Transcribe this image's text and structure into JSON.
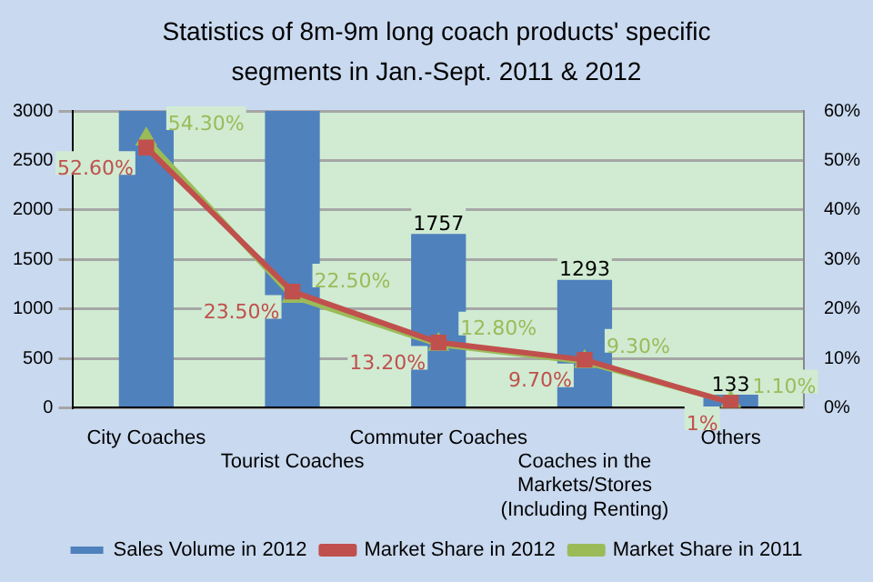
{
  "chart_data": {
    "type": "bar",
    "title": "Statistics of 8m-9m long coach products' specific segments in Jan.-Sept. 2011 & 2012",
    "categories": [
      "City Coaches",
      "Tourist Coaches",
      "Commuter Coaches",
      "Coaches in the Markets/Stores (Including Renting)",
      "Others"
    ],
    "series": [
      {
        "name": "Sales Volume in 2012",
        "color": "#4f81bd",
        "values": [
          3000,
          3000,
          1757,
          1293,
          133
        ],
        "value_labels": [
          null,
          null,
          "1757",
          "1293",
          "133"
        ]
      },
      {
        "name": "Market Share in 2012",
        "type": "line",
        "axis": "y2",
        "marker": "square",
        "color": "#c0504d",
        "values": [
          52.6,
          23.5,
          13.2,
          9.7,
          1
        ],
        "value_labels": [
          "52.60%",
          "23.50%",
          "13.20%",
          "9.70%",
          "1%"
        ]
      },
      {
        "name": "Market Share in 2011",
        "type": "line",
        "axis": "y2",
        "marker": "triangle",
        "color": "#9bbb59",
        "values": [
          54.3,
          22.5,
          12.8,
          9.3,
          1.1
        ],
        "value_labels": [
          "54.30%",
          "22.50%",
          "12.80%",
          "9.30%",
          "1.10%"
        ]
      }
    ],
    "ylim": [
      0,
      3000
    ],
    "yticks": [
      0,
      500,
      1000,
      1500,
      2000,
      2500,
      3000
    ],
    "y2lim": [
      0,
      60
    ],
    "y2ticks": [
      {
        "value": 0,
        "label": "0%"
      },
      {
        "value": 10,
        "label": "10%"
      },
      {
        "value": 20,
        "label": "20%"
      },
      {
        "value": 30,
        "label": "30%"
      },
      {
        "value": 40,
        "label": "40%"
      },
      {
        "value": 50,
        "label": "50%"
      },
      {
        "value": 60,
        "label": "60%"
      }
    ],
    "grid": "y",
    "legend": "bottom"
  }
}
